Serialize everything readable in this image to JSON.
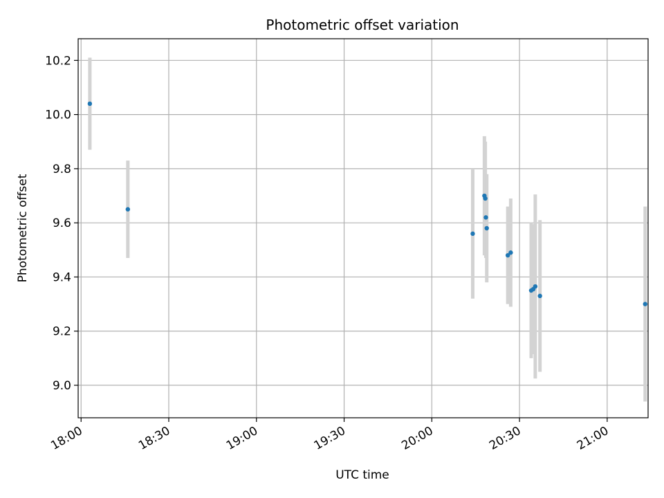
{
  "chart_data": {
    "type": "scatter",
    "title": "Photometric offset variation",
    "xlabel": "UTC time",
    "ylabel": "Photometric offset",
    "xlim": [
      "17:59",
      "21:14"
    ],
    "ylim": [
      8.88,
      10.28
    ],
    "x_ticks": [
      "18:00",
      "18:30",
      "19:00",
      "19:30",
      "20:00",
      "20:30",
      "21:00"
    ],
    "y_ticks": [
      9.0,
      9.2,
      9.4,
      9.6,
      9.8,
      10.0,
      10.2
    ],
    "grid": true,
    "colors": {
      "point": "#1f77b4",
      "errorbar": "#d3d3d3",
      "grid": "#b0b0b0"
    },
    "series": [
      {
        "points": [
          {
            "x": "18:03",
            "y": 10.04,
            "yerr": 0.17
          },
          {
            "x": "18:16",
            "y": 9.65,
            "yerr": 0.18
          },
          {
            "x": "20:14",
            "y": 9.56,
            "yerr": 0.24
          },
          {
            "x": "20:18",
            "y": 9.7,
            "yerr": 0.22
          },
          {
            "x": "20:18.3",
            "y": 9.69,
            "yerr": 0.21
          },
          {
            "x": "20:18.5",
            "y": 9.62,
            "yerr": 0.15
          },
          {
            "x": "20:18.8",
            "y": 9.58,
            "yerr": 0.2
          },
          {
            "x": "20:26",
            "y": 9.48,
            "yerr": 0.18
          },
          {
            "x": "20:27",
            "y": 9.49,
            "yerr": 0.2
          },
          {
            "x": "20:34",
            "y": 9.35,
            "yerr": 0.25
          },
          {
            "x": "20:34.7",
            "y": 9.355,
            "yerr": 0.24
          },
          {
            "x": "20:35.4",
            "y": 9.365,
            "yerr": 0.34
          },
          {
            "x": "20:37",
            "y": 9.33,
            "yerr": 0.28
          },
          {
            "x": "21:13",
            "y": 9.3,
            "yerr": 0.36
          }
        ]
      }
    ]
  }
}
